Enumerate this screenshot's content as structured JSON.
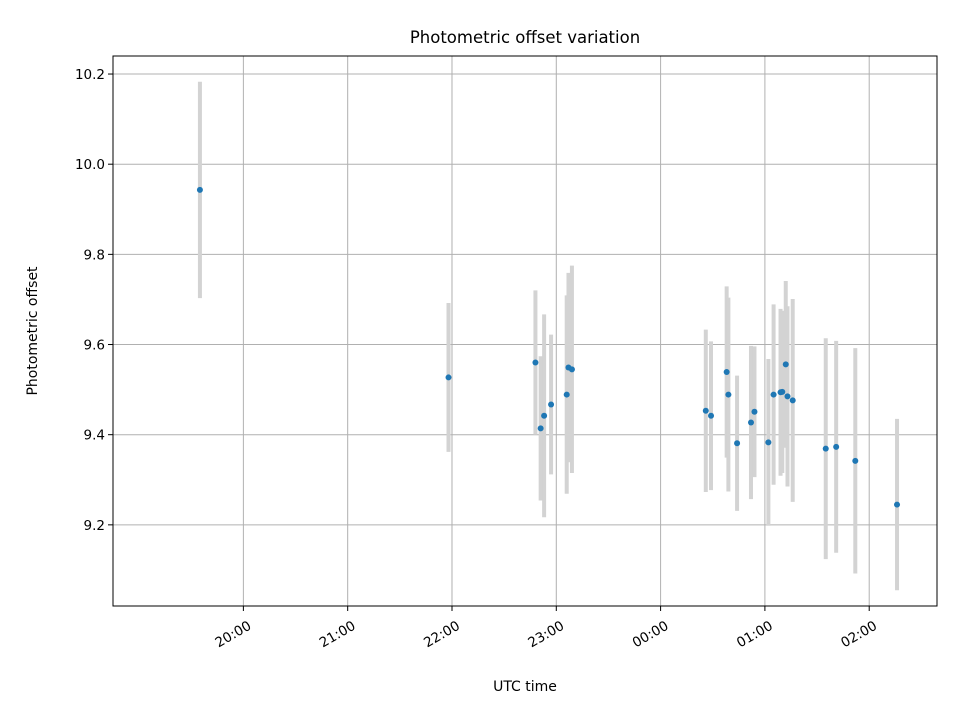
{
  "chart_data": {
    "type": "scatter",
    "title": "Photometric offset variation",
    "xlabel": "UTC time",
    "ylabel": "Photometric offset",
    "grid": true,
    "xlim_hours": [
      18.75,
      26.65
    ],
    "ylim": [
      9.02,
      10.24
    ],
    "x_ticks": [
      {
        "h": 20,
        "label": "20:00"
      },
      {
        "h": 21,
        "label": "21:00"
      },
      {
        "h": 22,
        "label": "22:00"
      },
      {
        "h": 23,
        "label": "23:00"
      },
      {
        "h": 24,
        "label": "00:00"
      },
      {
        "h": 25,
        "label": "01:00"
      },
      {
        "h": 26,
        "label": "02:00"
      }
    ],
    "y_ticks": [
      {
        "v": 9.2,
        "label": "9.2"
      },
      {
        "v": 9.4,
        "label": "9.4"
      },
      {
        "v": 9.6,
        "label": "9.6"
      },
      {
        "v": 9.8,
        "label": "9.8"
      },
      {
        "v": 10.0,
        "label": "10.0"
      },
      {
        "v": 10.2,
        "label": "10.2"
      }
    ],
    "marker_color": "#1f77b4",
    "errorbar_color": "#d3d3d3",
    "points": [
      {
        "t": "19:35",
        "y": 9.943,
        "err": 0.24
      },
      {
        "t": "21:58",
        "y": 9.527,
        "err": 0.165
      },
      {
        "t": "22:48",
        "y": 9.56,
        "err": 0.16
      },
      {
        "t": "22:51",
        "y": 9.414,
        "err": 0.16
      },
      {
        "t": "22:53",
        "y": 9.442,
        "err": 0.225
      },
      {
        "t": "22:57",
        "y": 9.467,
        "err": 0.155
      },
      {
        "t": "23:06",
        "y": 9.489,
        "err": 0.22
      },
      {
        "t": "23:07",
        "y": 9.549,
        "err": 0.21
      },
      {
        "t": "23:09",
        "y": 9.545,
        "err": 0.23
      },
      {
        "t": "00:26",
        "y": 9.453,
        "err": 0.18
      },
      {
        "t": "00:29",
        "y": 9.442,
        "err": 0.165
      },
      {
        "t": "00:38",
        "y": 9.539,
        "err": 0.19
      },
      {
        "t": "00:39",
        "y": 9.489,
        "err": 0.215
      },
      {
        "t": "00:44",
        "y": 9.381,
        "err": 0.15
      },
      {
        "t": "00:52",
        "y": 9.427,
        "err": 0.17
      },
      {
        "t": "00:54",
        "y": 9.451,
        "err": 0.145
      },
      {
        "t": "01:02",
        "y": 9.383,
        "err": 0.185
      },
      {
        "t": "01:05",
        "y": 9.489,
        "err": 0.2
      },
      {
        "t": "01:09",
        "y": 9.494,
        "err": 0.185
      },
      {
        "t": "01:10",
        "y": 9.495,
        "err": 0.18
      },
      {
        "t": "01:12",
        "y": 9.556,
        "err": 0.185
      },
      {
        "t": "01:13",
        "y": 9.485,
        "err": 0.2
      },
      {
        "t": "01:16",
        "y": 9.476,
        "err": 0.225
      },
      {
        "t": "01:35",
        "y": 9.369,
        "err": 0.245
      },
      {
        "t": "01:41",
        "y": 9.373,
        "err": 0.235
      },
      {
        "t": "01:52",
        "y": 9.342,
        "err": 0.25
      },
      {
        "t": "02:16",
        "y": 9.245,
        "err": 0.19
      }
    ]
  }
}
